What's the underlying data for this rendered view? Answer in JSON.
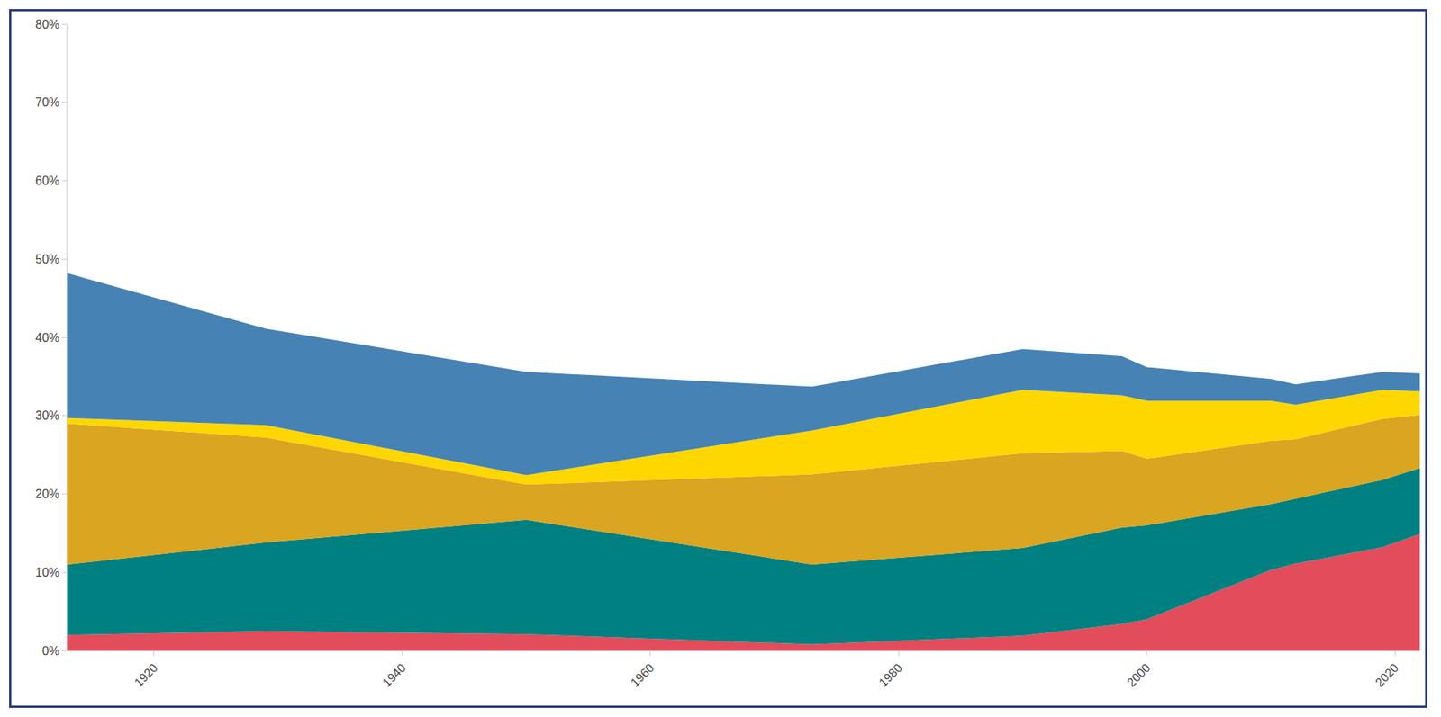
{
  "chart_data": {
    "type": "area",
    "stacked": true,
    "grid": false,
    "x": [
      1913,
      1929,
      1950,
      1973,
      1990,
      1998,
      2000,
      2010,
      2012,
      2019,
      2022
    ],
    "xlim": [
      1913,
      2022
    ],
    "xticks": [
      1920,
      1940,
      1960,
      1980,
      2000,
      2020
    ],
    "ylim": [
      0,
      80
    ],
    "yticks": [
      {
        "value": 0,
        "label": "0%"
      },
      {
        "value": 10,
        "label": "10%"
      },
      {
        "value": 20,
        "label": "20%"
      },
      {
        "value": 30,
        "label": "30%"
      },
      {
        "value": 40,
        "label": "40%"
      },
      {
        "value": 50,
        "label": "50%"
      },
      {
        "value": 60,
        "label": "60%"
      },
      {
        "value": 70,
        "label": "70%"
      },
      {
        "value": 80,
        "label": "80%"
      }
    ],
    "series": [
      {
        "color": "#e34c5b",
        "values": [
          2.0,
          2.5,
          2.1,
          0.8,
          1.9,
          3.4,
          4.0,
          10.3,
          11.1,
          13.2,
          14.9
        ]
      },
      {
        "color": "#008080",
        "values": [
          9.0,
          11.3,
          14.6,
          10.2,
          11.2,
          12.3,
          12.0,
          8.4,
          8.3,
          8.6,
          8.4
        ]
      },
      {
        "color": "#daa520",
        "values": [
          18.0,
          13.4,
          4.5,
          11.5,
          12.1,
          9.8,
          8.5,
          8.1,
          7.6,
          7.8,
          6.8
        ]
      },
      {
        "color": "#ffd700",
        "values": [
          0.7,
          1.6,
          1.2,
          5.6,
          8.1,
          7.1,
          7.4,
          5.1,
          4.4,
          3.7,
          3.0
        ]
      },
      {
        "color": "#4682b4",
        "values": [
          18.5,
          12.3,
          13.2,
          5.6,
          5.2,
          5.0,
          4.3,
          2.8,
          2.6,
          2.3,
          2.3
        ]
      }
    ]
  }
}
